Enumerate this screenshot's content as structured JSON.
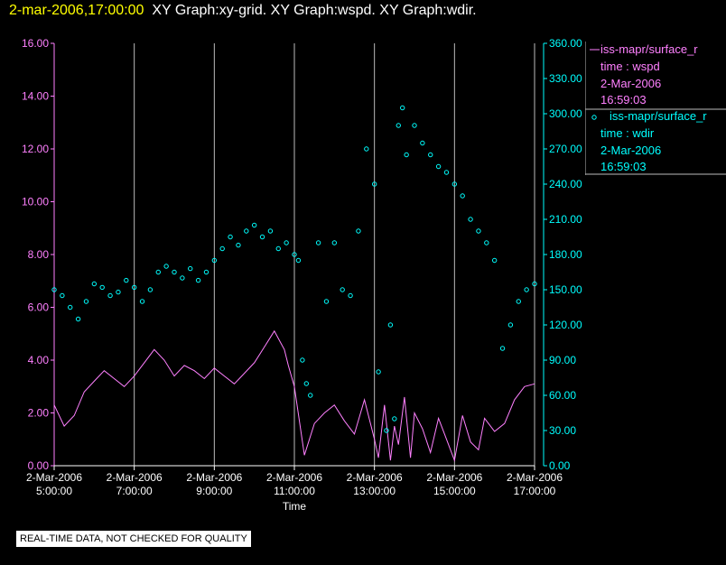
{
  "header": {
    "timestamp": "2-mar-2006,17:00:00",
    "graph_titles": "XY Graph:xy-grid.  XY Graph:wspd.  XY Graph:wdir."
  },
  "legend": {
    "series1_label": "iss-mapr/surface_r",
    "series1_line2": "time : wspd",
    "series1_date": "2-Mar-2006",
    "series1_time": "16:59:03",
    "series2_label": "iss-mapr/surface_r",
    "series2_line2": "time : wdir",
    "series2_date": "2-Mar-2006",
    "series2_time": "16:59:03"
  },
  "notice": "REAL-TIME DATA, NOT CHECKED FOR QUALITY",
  "colors": {
    "wspd": "#ff80ff",
    "wdir": "#00ffff",
    "grid": "#bbbbbb",
    "header_ts": "#ffff00"
  },
  "chart_data": {
    "type": "line",
    "xlabel": "Time",
    "x_range": [
      "2-Mar-2006 05:00:00",
      "2-Mar-2006 17:00:00"
    ],
    "x_ticks": [
      [
        "2-Mar-2006",
        "5:00:00"
      ],
      [
        "2-Mar-2006",
        "7:00:00"
      ],
      [
        "2-Mar-2006",
        "9:00:00"
      ],
      [
        "2-Mar-2006",
        "11:00:00"
      ],
      [
        "2-Mar-2006",
        "13:00:00"
      ],
      [
        "2-Mar-2006",
        "15:00:00"
      ],
      [
        "2-Mar-2006",
        "17:00:00"
      ]
    ],
    "y_left": {
      "range": [
        0,
        16
      ],
      "ticks": [
        "0.00",
        "2.00",
        "4.00",
        "6.00",
        "8.00",
        "10.00",
        "12.00",
        "14.00",
        "16.00"
      ]
    },
    "y_right": {
      "range": [
        0,
        360
      ],
      "ticks": [
        "0.00",
        "30.00",
        "60.00",
        "90.00",
        "120.00",
        "150.00",
        "180.00",
        "210.00",
        "240.00",
        "270.00",
        "300.00",
        "330.00",
        "360.00"
      ]
    },
    "grid": "vertical lines at every 2 hours",
    "series": [
      {
        "name": "wspd",
        "axis": "left",
        "style": "line",
        "x": [
          5.0,
          5.25,
          5.5,
          5.75,
          6.0,
          6.25,
          6.5,
          6.75,
          7.0,
          7.25,
          7.5,
          7.75,
          8.0,
          8.25,
          8.5,
          8.75,
          9.0,
          9.25,
          9.5,
          9.75,
          10.0,
          10.25,
          10.5,
          10.75,
          10.85,
          11.0,
          11.25,
          11.5,
          11.75,
          12.0,
          12.25,
          12.5,
          12.75,
          13.0,
          13.1,
          13.25,
          13.4,
          13.5,
          13.6,
          13.75,
          13.9,
          14.0,
          14.2,
          14.4,
          14.6,
          14.75,
          15.0,
          15.2,
          15.4,
          15.6,
          15.75,
          16.0,
          16.25,
          16.5,
          16.75,
          17.0
        ],
        "y": [
          2.3,
          1.5,
          1.9,
          2.8,
          3.2,
          3.6,
          3.3,
          3.0,
          3.4,
          3.9,
          4.4,
          4.0,
          3.4,
          3.8,
          3.6,
          3.3,
          3.7,
          3.4,
          3.1,
          3.5,
          3.9,
          4.5,
          5.1,
          4.4,
          3.8,
          3.0,
          0.4,
          1.6,
          2.0,
          2.3,
          1.7,
          1.2,
          2.5,
          1.0,
          0.3,
          2.3,
          0.2,
          1.5,
          0.8,
          2.6,
          0.3,
          2.0,
          1.4,
          0.5,
          1.8,
          1.2,
          0.2,
          1.9,
          0.9,
          0.6,
          1.8,
          1.3,
          1.6,
          2.5,
          3.0,
          3.1
        ]
      },
      {
        "name": "wdir",
        "axis": "right",
        "style": "points",
        "x": [
          5.0,
          5.2,
          5.4,
          5.6,
          5.8,
          6.0,
          6.2,
          6.4,
          6.6,
          6.8,
          7.0,
          7.2,
          7.4,
          7.6,
          7.8,
          8.0,
          8.2,
          8.4,
          8.6,
          8.8,
          9.0,
          9.2,
          9.4,
          9.6,
          9.8,
          10.0,
          10.2,
          10.4,
          10.6,
          10.8,
          11.0,
          11.1,
          11.2,
          11.3,
          11.4,
          11.6,
          11.8,
          12.0,
          12.2,
          12.4,
          12.6,
          12.8,
          13.0,
          13.1,
          13.3,
          13.4,
          13.5,
          13.6,
          13.7,
          13.8,
          14.0,
          14.2,
          14.4,
          14.6,
          14.8,
          15.0,
          15.2,
          15.4,
          15.6,
          15.8,
          16.0,
          16.2,
          16.4,
          16.6,
          16.8,
          17.0
        ],
        "y": [
          150,
          145,
          135,
          125,
          140,
          155,
          152,
          145,
          148,
          158,
          152,
          140,
          150,
          165,
          170,
          165,
          160,
          168,
          158,
          165,
          175,
          185,
          195,
          188,
          200,
          205,
          195,
          200,
          185,
          190,
          180,
          175,
          90,
          70,
          60,
          190,
          140,
          190,
          150,
          145,
          200,
          270,
          240,
          80,
          30,
          120,
          40,
          290,
          305,
          265,
          290,
          275,
          265,
          255,
          250,
          240,
          230,
          210,
          200,
          190,
          175,
          100,
          120,
          140,
          150,
          155
        ]
      }
    ]
  }
}
